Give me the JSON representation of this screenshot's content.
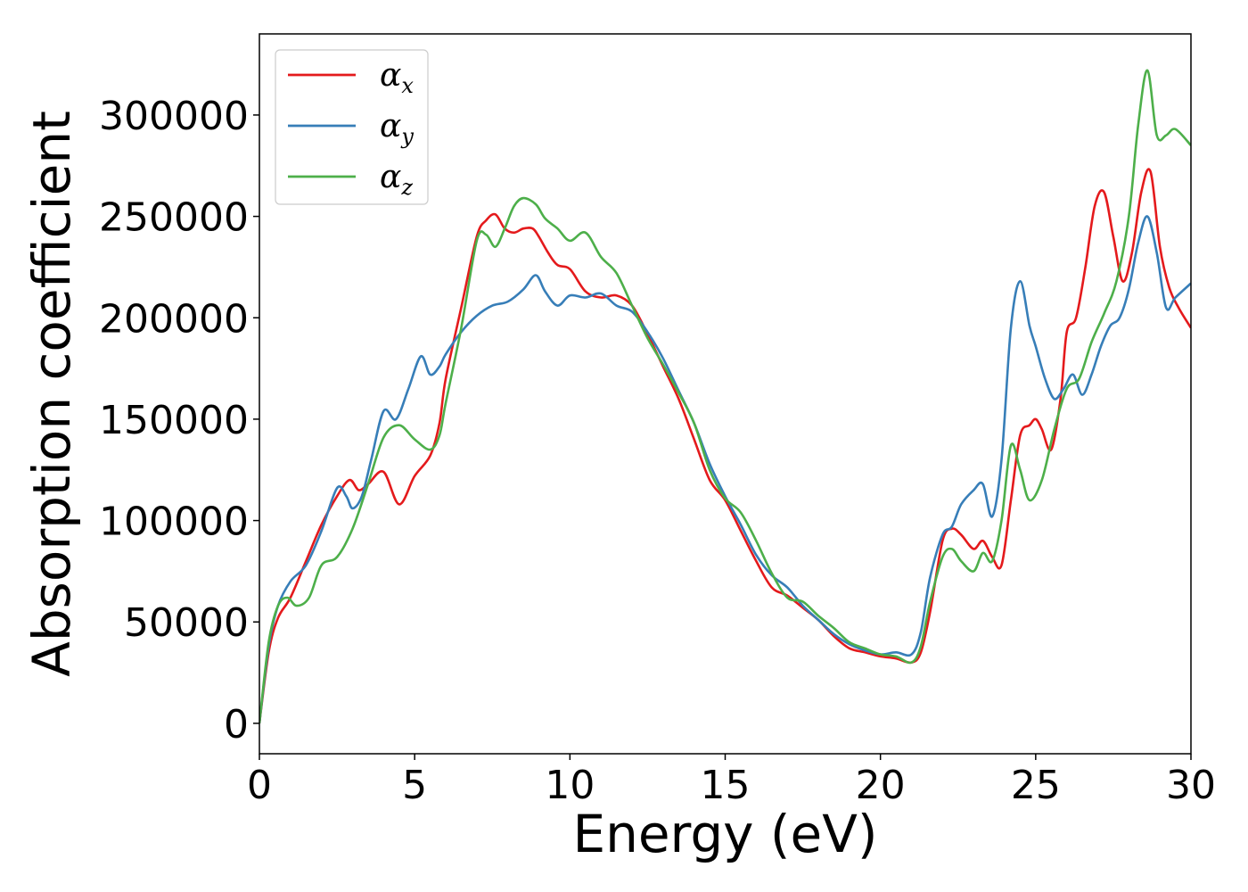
{
  "chart_data": {
    "type": "line",
    "title": "",
    "xlabel": "Energy (eV)",
    "ylabel": "Absorption coefficient",
    "xlim": [
      0,
      30
    ],
    "ylim": [
      -15000,
      340000
    ],
    "xticks": [
      0,
      5,
      10,
      15,
      20,
      25,
      30
    ],
    "yticks": [
      0,
      50000,
      100000,
      150000,
      200000,
      250000,
      300000
    ],
    "grid": false,
    "legend_position": "top-left",
    "series": [
      {
        "name": "αx",
        "symbol": "α",
        "subscript": "x",
        "color": "#e41a1c",
        "x": [
          0,
          0.3,
          0.6,
          1,
          1.5,
          2,
          2.5,
          2.9,
          3.2,
          3.5,
          4,
          4.5,
          5,
          5.5,
          5.8,
          6,
          6.5,
          7,
          7.3,
          7.6,
          7.9,
          8.2,
          8.5,
          8.8,
          9,
          9.3,
          9.6,
          10,
          10.5,
          11,
          11.5,
          12,
          12.5,
          13,
          13.5,
          14,
          14.5,
          15,
          15.5,
          16,
          16.5,
          17,
          17.5,
          18,
          18.5,
          19,
          19.5,
          20,
          20.5,
          21,
          21.3,
          21.6,
          22,
          22.3,
          22.6,
          23,
          23.3,
          23.6,
          23.9,
          24.2,
          24.5,
          24.8,
          25,
          25.2,
          25.5,
          25.8,
          26,
          26.3,
          26.6,
          26.9,
          27.2,
          27.5,
          27.8,
          28.1,
          28.4,
          28.7,
          29,
          29.3,
          29.6,
          30
        ],
        "y": [
          0,
          35000,
          52000,
          62000,
          80000,
          98000,
          112000,
          120000,
          115000,
          118000,
          124000,
          108000,
          122000,
          132000,
          148000,
          170000,
          205000,
          240000,
          248000,
          251000,
          244000,
          242000,
          244000,
          244000,
          240000,
          232000,
          226000,
          224000,
          213000,
          210000,
          211000,
          206000,
          192000,
          176000,
          160000,
          140000,
          120000,
          110000,
          95000,
          80000,
          67000,
          63000,
          57000,
          51000,
          43000,
          37000,
          35000,
          33000,
          32000,
          30000,
          35000,
          55000,
          90000,
          96000,
          93000,
          86000,
          90000,
          82000,
          78000,
          110000,
          142000,
          147000,
          150000,
          145000,
          135000,
          160000,
          193000,
          200000,
          225000,
          255000,
          262000,
          240000,
          218000,
          232000,
          262000,
          272000,
          235000,
          215000,
          205000,
          195000
        ]
      },
      {
        "name": "αy",
        "symbol": "α",
        "subscript": "y",
        "color": "#377eb8",
        "x": [
          0,
          0.3,
          0.6,
          1,
          1.5,
          2,
          2.5,
          2.8,
          3,
          3.3,
          3.6,
          4,
          4.4,
          4.8,
          5.2,
          5.5,
          5.8,
          6,
          6.5,
          7,
          7.5,
          8,
          8.5,
          8.9,
          9.2,
          9.6,
          10,
          10.5,
          11,
          11.5,
          12,
          12.5,
          13,
          13.5,
          14,
          14.5,
          15,
          15.5,
          16,
          16.5,
          17,
          17.5,
          18,
          18.5,
          19,
          19.5,
          20,
          20.5,
          21,
          21.3,
          21.6,
          22,
          22.3,
          22.6,
          23,
          23.3,
          23.6,
          23.9,
          24.2,
          24.5,
          24.8,
          25,
          25.3,
          25.6,
          25.9,
          26.2,
          26.5,
          26.8,
          27.1,
          27.4,
          27.7,
          28,
          28.3,
          28.6,
          28.9,
          29.2,
          29.5,
          30
        ],
        "y": [
          0,
          38000,
          58000,
          70000,
          78000,
          95000,
          116000,
          112000,
          106000,
          112000,
          130000,
          154000,
          150000,
          165000,
          181000,
          172000,
          176000,
          182000,
          193000,
          201000,
          206000,
          208000,
          214000,
          221000,
          213000,
          206000,
          211000,
          210000,
          212000,
          206000,
          203000,
          193000,
          180000,
          164000,
          148000,
          128000,
          112000,
          98000,
          83000,
          73000,
          67000,
          58000,
          51000,
          44000,
          39000,
          36000,
          34000,
          35000,
          34000,
          45000,
          72000,
          93000,
          97000,
          108000,
          115000,
          118000,
          102000,
          130000,
          195000,
          218000,
          196000,
          186000,
          170000,
          160000,
          165000,
          172000,
          162000,
          172000,
          186000,
          196000,
          200000,
          214000,
          237000,
          250000,
          232000,
          205000,
          210000,
          217000
        ]
      },
      {
        "name": "αz",
        "symbol": "α",
        "subscript": "z",
        "color": "#4daf4a",
        "x": [
          0,
          0.3,
          0.6,
          0.9,
          1.2,
          1.6,
          2,
          2.5,
          3,
          3.5,
          4,
          4.5,
          5,
          5.5,
          5.8,
          6,
          6.5,
          7,
          7.3,
          7.6,
          7.9,
          8.2,
          8.5,
          8.9,
          9.2,
          9.6,
          10,
          10.5,
          11,
          11.5,
          12,
          12.5,
          13,
          13.5,
          14,
          14.5,
          15,
          15.5,
          16,
          16.5,
          17,
          17.5,
          18,
          18.5,
          19,
          19.5,
          20,
          20.5,
          21,
          21.3,
          21.6,
          22,
          22.3,
          22.6,
          23,
          23.3,
          23.6,
          23.9,
          24.2,
          24.5,
          24.8,
          25.2,
          25.6,
          26,
          26.4,
          26.8,
          27.2,
          27.6,
          28,
          28.3,
          28.6,
          28.9,
          29.2,
          29.5,
          30
        ],
        "y": [
          0,
          40000,
          58000,
          62000,
          58000,
          62000,
          78000,
          82000,
          96000,
          118000,
          141000,
          147000,
          140000,
          135000,
          142000,
          158000,
          195000,
          238000,
          241000,
          235000,
          244000,
          255000,
          259000,
          256000,
          249000,
          244000,
          238000,
          242000,
          230000,
          222000,
          206000,
          190000,
          177000,
          163000,
          148000,
          125000,
          111000,
          104000,
          90000,
          74000,
          62000,
          60000,
          53000,
          47000,
          40000,
          37000,
          34000,
          33000,
          30000,
          38000,
          60000,
          82000,
          86000,
          80000,
          75000,
          84000,
          80000,
          100000,
          137000,
          125000,
          110000,
          120000,
          145000,
          165000,
          170000,
          188000,
          202000,
          218000,
          250000,
          295000,
          322000,
          290000,
          290000,
          293000,
          285000
        ]
      }
    ]
  }
}
